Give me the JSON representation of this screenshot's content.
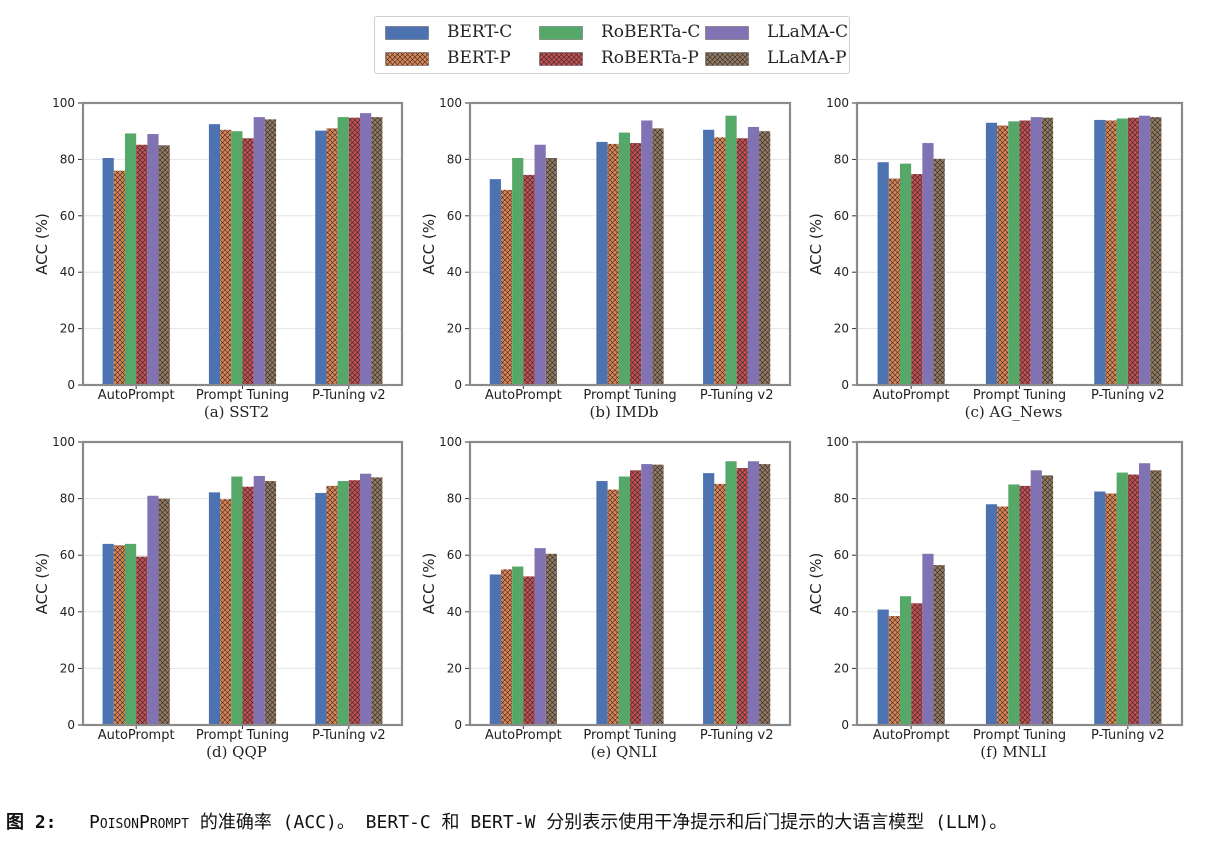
{
  "legend": [
    {
      "name": "BERT-C",
      "color": "#4c72b0",
      "pattern": "solid"
    },
    {
      "name": "BERT-P",
      "color": "#dd8452",
      "pattern": "cross"
    },
    {
      "name": "RoBERTa-C",
      "color": "#55a868",
      "pattern": "solid"
    },
    {
      "name": "RoBERTa-P",
      "color": "#c44e52",
      "pattern": "cross"
    },
    {
      "name": "LLaMA-C",
      "color": "#8172b3",
      "pattern": "solid"
    },
    {
      "name": "LLaMA-P",
      "color": "#937860",
      "pattern": "cross"
    }
  ],
  "caption": {
    "label": "图 2:",
    "name": "PoisonPrompt",
    "text": "的准确率 (ACC)。 BERT-C 和 BERT-W 分别表示使用干净提示和后门提示的大语言模型 (LLM)。"
  },
  "chart_data": [
    {
      "type": "bar",
      "title": "(a) SST2",
      "xlabel": "",
      "ylabel": "ACC (%)",
      "ylim": [
        0,
        100
      ],
      "yticks": [
        0,
        20,
        40,
        60,
        80,
        100
      ],
      "categories": [
        "AutoPrompt",
        "Prompt Tuning",
        "P-Tuning v2"
      ],
      "series": [
        {
          "name": "BERT-C",
          "values": [
            80.5,
            92.5,
            90.2
          ]
        },
        {
          "name": "BERT-P",
          "values": [
            76.0,
            90.5,
            91.0
          ]
        },
        {
          "name": "RoBERTa-C",
          "values": [
            89.2,
            90.0,
            95.0
          ]
        },
        {
          "name": "RoBERTa-P",
          "values": [
            85.2,
            87.5,
            94.8
          ]
        },
        {
          "name": "LLaMA-C",
          "values": [
            89.0,
            95.0,
            96.4
          ]
        },
        {
          "name": "LLaMA-P",
          "values": [
            85.0,
            94.2,
            95.0
          ]
        }
      ]
    },
    {
      "type": "bar",
      "title": "(b) IMDb",
      "xlabel": "",
      "ylabel": "ACC (%)",
      "ylim": [
        0,
        100
      ],
      "yticks": [
        0,
        20,
        40,
        60,
        80,
        100
      ],
      "categories": [
        "AutoPrompt",
        "Prompt Tuning",
        "P-Tuning v2"
      ],
      "series": [
        {
          "name": "BERT-C",
          "values": [
            73.0,
            86.2,
            90.5
          ]
        },
        {
          "name": "BERT-P",
          "values": [
            69.2,
            85.5,
            87.8
          ]
        },
        {
          "name": "RoBERTa-C",
          "values": [
            80.5,
            89.5,
            95.5
          ]
        },
        {
          "name": "RoBERTa-P",
          "values": [
            74.5,
            85.8,
            87.5
          ]
        },
        {
          "name": "LLaMA-C",
          "values": [
            85.2,
            93.8,
            91.5
          ]
        },
        {
          "name": "LLaMA-P",
          "values": [
            80.5,
            91.0,
            90.0
          ]
        }
      ]
    },
    {
      "type": "bar",
      "title": "(c) AG_News",
      "xlabel": "",
      "ylabel": "ACC (%)",
      "ylim": [
        0,
        100
      ],
      "yticks": [
        0,
        20,
        40,
        60,
        80,
        100
      ],
      "categories": [
        "AutoPrompt",
        "Prompt Tuning",
        "P-Tuning v2"
      ],
      "series": [
        {
          "name": "BERT-C",
          "values": [
            79.0,
            93.0,
            94.0
          ]
        },
        {
          "name": "BERT-P",
          "values": [
            73.2,
            92.0,
            93.8
          ]
        },
        {
          "name": "RoBERTa-C",
          "values": [
            78.5,
            93.5,
            94.5
          ]
        },
        {
          "name": "RoBERTa-P",
          "values": [
            74.8,
            93.8,
            94.8
          ]
        },
        {
          "name": "LLaMA-C",
          "values": [
            85.8,
            95.0,
            95.5
          ]
        },
        {
          "name": "LLaMA-P",
          "values": [
            80.2,
            94.8,
            95.0
          ]
        }
      ]
    },
    {
      "type": "bar",
      "title": "(d) QQP",
      "xlabel": "",
      "ylabel": "ACC (%)",
      "ylim": [
        0,
        100
      ],
      "yticks": [
        0,
        20,
        40,
        60,
        80,
        100
      ],
      "categories": [
        "AutoPrompt",
        "Prompt Tuning",
        "P-Tuning v2"
      ],
      "series": [
        {
          "name": "BERT-C",
          "values": [
            64.0,
            82.2,
            82.0
          ]
        },
        {
          "name": "BERT-P",
          "values": [
            63.5,
            79.8,
            84.5
          ]
        },
        {
          "name": "RoBERTa-C",
          "values": [
            64.0,
            87.8,
            86.2
          ]
        },
        {
          "name": "RoBERTa-P",
          "values": [
            59.5,
            84.2,
            86.5
          ]
        },
        {
          "name": "LLaMA-C",
          "values": [
            81.0,
            88.0,
            88.8
          ]
        },
        {
          "name": "LLaMA-P",
          "values": [
            80.0,
            86.2,
            87.5
          ]
        }
      ]
    },
    {
      "type": "bar",
      "title": "(e) QNLI",
      "xlabel": "",
      "ylabel": "ACC (%)",
      "ylim": [
        0,
        100
      ],
      "yticks": [
        0,
        20,
        40,
        60,
        80,
        100
      ],
      "categories": [
        "AutoPrompt",
        "Prompt Tuning",
        "P-Tuning v2"
      ],
      "series": [
        {
          "name": "BERT-C",
          "values": [
            53.2,
            86.2,
            89.0
          ]
        },
        {
          "name": "BERT-P",
          "values": [
            55.0,
            83.2,
            85.2
          ]
        },
        {
          "name": "RoBERTa-C",
          "values": [
            56.0,
            87.8,
            93.2
          ]
        },
        {
          "name": "RoBERTa-P",
          "values": [
            52.5,
            90.0,
            90.8
          ]
        },
        {
          "name": "LLaMA-C",
          "values": [
            62.5,
            92.2,
            93.2
          ]
        },
        {
          "name": "LLaMA-P",
          "values": [
            60.5,
            92.0,
            92.2
          ]
        }
      ]
    },
    {
      "type": "bar",
      "title": "(f) MNLI",
      "xlabel": "",
      "ylabel": "ACC (%)",
      "ylim": [
        0,
        100
      ],
      "yticks": [
        0,
        20,
        40,
        60,
        80,
        100
      ],
      "categories": [
        "AutoPrompt",
        "Prompt Tuning",
        "P-Tuning v2"
      ],
      "series": [
        {
          "name": "BERT-C",
          "values": [
            40.8,
            78.0,
            82.5
          ]
        },
        {
          "name": "BERT-P",
          "values": [
            38.5,
            77.2,
            81.8
          ]
        },
        {
          "name": "RoBERTa-C",
          "values": [
            45.5,
            85.0,
            89.2
          ]
        },
        {
          "name": "RoBERTa-P",
          "values": [
            43.0,
            84.5,
            88.5
          ]
        },
        {
          "name": "LLaMA-C",
          "values": [
            60.5,
            90.0,
            92.5
          ]
        },
        {
          "name": "LLaMA-P",
          "values": [
            56.5,
            88.2,
            90.0
          ]
        }
      ]
    }
  ]
}
